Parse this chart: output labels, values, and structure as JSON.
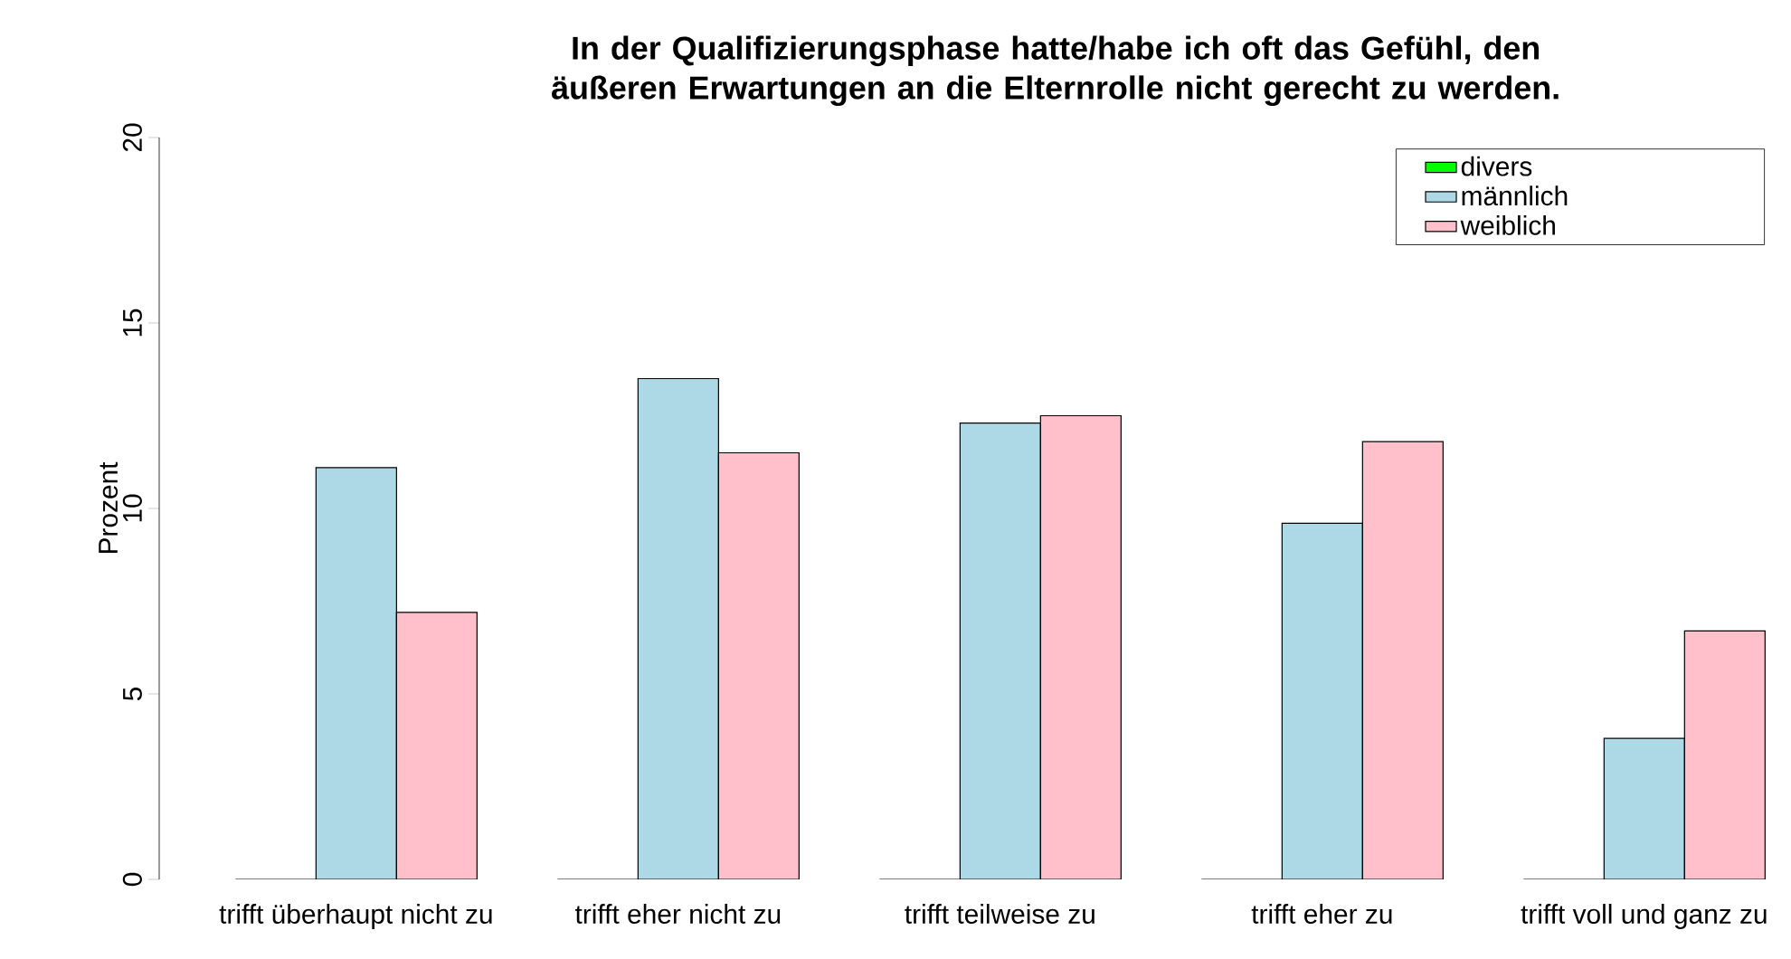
{
  "chart_data": {
    "type": "bar",
    "title": "In der Qualifizierungsphase hatte/habe ich oft das Gefühl, den äußeren Erwartungen an die Elternrolle nicht gerecht zu werden.",
    "ylabel": "Prozent",
    "categories": [
      "trifft überhaupt nicht zu",
      "trifft eher nicht zu",
      "trifft teilweise zu",
      "trifft eher zu",
      "trifft voll und ganz zu"
    ],
    "series": [
      {
        "name": "divers",
        "color": "#00ff00",
        "values": [
          0,
          0,
          0,
          0,
          0
        ]
      },
      {
        "name": "männlich",
        "color": "#add8e6",
        "values": [
          11.1,
          13.5,
          12.3,
          9.6,
          3.8
        ]
      },
      {
        "name": "weiblich",
        "color": "#ffc0cb",
        "values": [
          7.2,
          11.5,
          12.5,
          11.8,
          6.7
        ]
      }
    ],
    "ylim": [
      0,
      20
    ],
    "yticks": [
      0,
      5,
      10,
      15,
      20
    ],
    "grid": false,
    "legend": "top right"
  }
}
